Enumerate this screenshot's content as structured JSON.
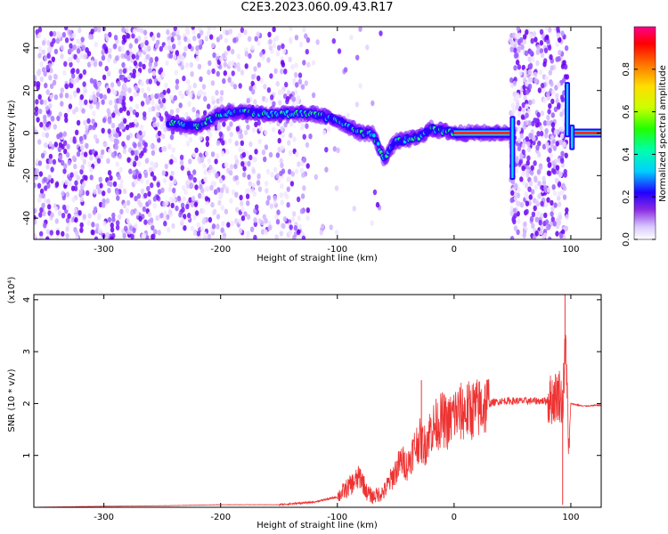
{
  "title": "C2E3.2023.060.09.43.R17",
  "colors": {
    "snr_line": "#ee3333",
    "axes": "#000000"
  },
  "chart_data": [
    {
      "type": "heatmap",
      "xlabel": "Height of straight line (km)",
      "ylabel": "Frequency (Hz)",
      "xlim": [
        -360,
        126
      ],
      "ylim": [
        -50,
        50
      ],
      "xticks": [
        -300,
        -200,
        -100,
        0,
        100
      ],
      "yticks": [
        -40,
        -20,
        0,
        20,
        40
      ],
      "colorbar": {
        "label": "Normalized spectral amplitude",
        "range": [
          0.0,
          1.0
        ],
        "ticks": [
          "0.0",
          "0.2",
          "0.4",
          "0.6",
          "0.8"
        ]
      },
      "ridge": {
        "x": [
          -245,
          -220,
          -200,
          -180,
          -160,
          -140,
          -120,
          -100,
          -80,
          -70,
          -60,
          -50,
          -40,
          -30,
          -20,
          -10,
          0,
          20,
          40,
          48
        ],
        "y": [
          5,
          3,
          9,
          10,
          9,
          9,
          9,
          6,
          0,
          0,
          -12,
          -4,
          -3,
          -2,
          2,
          1,
          0,
          0,
          0,
          0
        ]
      },
      "spikes": [
        {
          "x": 50,
          "y_range": [
            -22,
            8
          ]
        },
        {
          "x": 97,
          "y_range": [
            -2,
            24
          ]
        },
        {
          "x": 101,
          "y_range": [
            -8,
            4
          ]
        }
      ],
      "stable_line": [
        {
          "x_range": [
            0,
            48
          ],
          "y": 0
        },
        {
          "x_range": [
            103,
            126
          ],
          "y": 0
        }
      ]
    },
    {
      "type": "line",
      "xlabel": "Height of straight line (km)",
      "ylabel": "SNR (10 * v/v)",
      "multiplier": "(x10⁴)",
      "xlim": [
        -360,
        126
      ],
      "ylim": [
        0,
        4.1
      ],
      "xticks": [
        -300,
        -200,
        -100,
        0,
        100
      ],
      "yticks": [
        1,
        2,
        3,
        4
      ],
      "series": [
        {
          "x": [
            -360,
            -300,
            -250,
            -200,
            -150,
            -120,
            -110,
            -100,
            -90,
            -80,
            -75,
            -70,
            -60,
            -55,
            -50,
            -45,
            -40,
            -35,
            -30,
            -25,
            -20,
            -15,
            -10,
            -5,
            0,
            10,
            20,
            30,
            40,
            50,
            60,
            70,
            80,
            85,
            90,
            93,
            96,
            98,
            100,
            110,
            126
          ],
          "y": [
            0.0,
            0.02,
            0.03,
            0.05,
            0.05,
            0.1,
            0.15,
            0.2,
            0.4,
            0.6,
            0.3,
            0.2,
            0.3,
            0.5,
            0.7,
            0.9,
            0.8,
            1.1,
            1.3,
            1.2,
            1.5,
            1.6,
            1.7,
            1.6,
            1.8,
            1.85,
            1.9,
            2.0,
            2.05,
            2.05,
            2.05,
            2.05,
            2.05,
            2.1,
            2.2,
            2.0,
            3.2,
            1.0,
            2.0,
            1.95,
            1.97
          ]
        }
      ],
      "peaks": [
        {
          "x": -28,
          "y": 2.45
        },
        {
          "x": 95,
          "y": 4.1
        },
        {
          "x": 93,
          "y": 0.05
        }
      ]
    }
  ]
}
